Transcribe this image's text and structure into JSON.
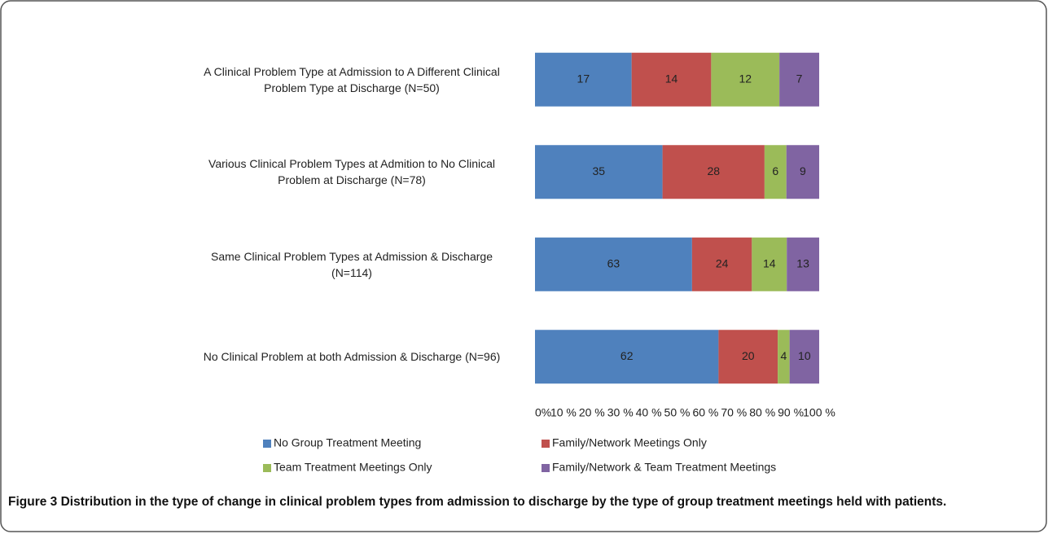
{
  "chart_data": {
    "type": "bar",
    "orientation": "horizontal",
    "stacking": "percent",
    "categories": [
      "A Clinical Problem Type at Admission to A Different Clinical Problem Type at Discharge (N=50)",
      "Various Clinical Problem Types at Admition to No Clinical Problem at Discharge (N=78)",
      "Same Clinical Problem Types at Admission & Discharge (N=114)",
      "No Clinical Problem at both Admission & Discharge (N=96)"
    ],
    "series": [
      {
        "name": "No Group Treatment Meeting",
        "color": "#4f81bd",
        "values": [
          17,
          35,
          63,
          62
        ]
      },
      {
        "name": "Family/Network Meetings Only",
        "color": "#c0504d",
        "values": [
          14,
          28,
          24,
          20
        ]
      },
      {
        "name": "Team Treatment Meetings Only",
        "color": "#9bbb59",
        "values": [
          12,
          6,
          14,
          4
        ]
      },
      {
        "name": "Family/Network & Team Treatment Meetings",
        "color": "#8064a2",
        "values": [
          7,
          9,
          13,
          10
        ]
      }
    ],
    "xlim": [
      0,
      100
    ],
    "xticks": [
      {
        "value": 0,
        "label": "0%"
      },
      {
        "value": 10,
        "label": "10 %"
      },
      {
        "value": 20,
        "label": "20 %"
      },
      {
        "value": 30,
        "label": "30 %"
      },
      {
        "value": 40,
        "label": "40 %"
      },
      {
        "value": 50,
        "label": "50 %"
      },
      {
        "value": 60,
        "label": "60 %"
      },
      {
        "value": 70,
        "label": "70 %"
      },
      {
        "value": 80,
        "label": "80 %"
      },
      {
        "value": 90,
        "label": "90 %"
      },
      {
        "value": 100,
        "label": "100 %"
      }
    ],
    "grid": false,
    "legend": "bottom",
    "caption_label": "Figure 3",
    "caption": "Distribution in the type of change in clinical problem types from admission to discharge by the type of group treatment meetings held with patients."
  }
}
